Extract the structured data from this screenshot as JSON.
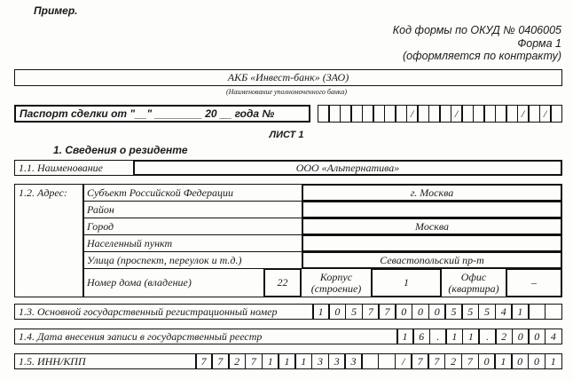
{
  "header": {
    "example_label": "Пример.",
    "okud_code": "Код формы по ОКУД № 0406005",
    "form_number": "Форма 1",
    "form_note": "(оформляется по контракту)"
  },
  "bank": {
    "name": "АКБ «Инвест-банк» (ЗАО)",
    "caption": "(Наименование уполномоченного банка)"
  },
  "passport": {
    "label": "Паспорт сделки от \"__\" ________ 20 __ года  №",
    "cells": [
      "",
      "",
      "",
      "",
      "",
      "",
      "",
      "",
      "/",
      "",
      "",
      "",
      "/",
      "",
      "",
      "",
      "",
      "",
      "/",
      "",
      "/",
      ""
    ]
  },
  "sheet_title": "ЛИСТ 1",
  "section_title": "1. Сведения о резиденте",
  "name_row": {
    "label": "1.1. Наименование",
    "value": "ООО «Альтернатива»"
  },
  "address": {
    "label": "1.2. Адрес:",
    "rows": [
      {
        "label": "Субъект Российской Федерации",
        "value": "г. Москва"
      },
      {
        "label": "Район",
        "value": ""
      },
      {
        "label": "Город",
        "value": "Москва"
      },
      {
        "label": "Населенный пункт",
        "value": ""
      },
      {
        "label": "Улица (проспект, переулок и т.д.)",
        "value": "Севастопольский пр-т"
      }
    ],
    "house_label": "Номер дома (владение)",
    "house_value": "22",
    "building_label": "Корпус (строение)",
    "building_value": "1",
    "office_label": "Офис (квартира)",
    "office_value": "–"
  },
  "ogrn": {
    "label": "1.3. Основной государственный регистрационный номер",
    "cells": [
      "1",
      "0",
      "5",
      "7",
      "7",
      "0",
      "0",
      "0",
      "5",
      "5",
      "5",
      "4",
      "1",
      "",
      ""
    ]
  },
  "reg_date": {
    "label": "1.4. Дата внесения записи в государственный реестр",
    "cells": [
      "1",
      "6",
      ".",
      "1",
      "1",
      ".",
      "2",
      "0",
      "0",
      "4"
    ]
  },
  "inn_kpp": {
    "label": "1.5. ИНН/КПП",
    "cells": [
      "7",
      "7",
      "2",
      "7",
      "1",
      "1",
      "1",
      "3",
      "3",
      "3",
      "",
      "",
      "/",
      "7",
      "7",
      "2",
      "7",
      "0",
      "1",
      "0",
      "0",
      "1"
    ]
  }
}
